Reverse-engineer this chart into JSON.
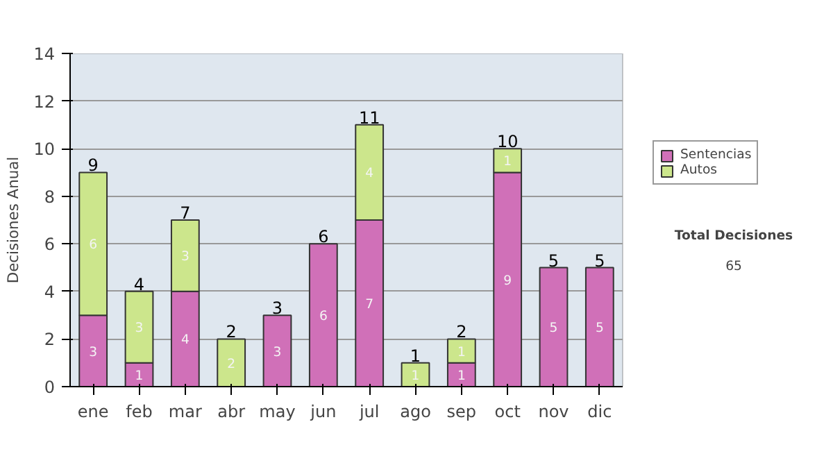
{
  "chart_data": {
    "type": "bar",
    "stacked": true,
    "ylabel": "Decisiones Anual",
    "categories": [
      "ene",
      "feb",
      "mar",
      "abr",
      "may",
      "jun",
      "jul",
      "ago",
      "sep",
      "oct",
      "nov",
      "dic"
    ],
    "series": [
      {
        "name": "Sentencias",
        "color": "#d070b8",
        "values": [
          3,
          1,
          4,
          0,
          3,
          6,
          7,
          0,
          1,
          9,
          5,
          5
        ],
        "value_labels": [
          "3",
          "1",
          "4",
          null,
          "3",
          "6",
          "7",
          null,
          "1",
          "9",
          "5",
          "5"
        ]
      },
      {
        "name": "Autos",
        "color": "#cce68c",
        "values": [
          6,
          3,
          3,
          2,
          0,
          0,
          4,
          1,
          1,
          1,
          0,
          0
        ],
        "value_labels": [
          "6",
          "3",
          "3",
          "2",
          null,
          null,
          "4",
          "1",
          "1",
          "1",
          null,
          null
        ]
      }
    ],
    "totals": [
      "9",
      "4",
      "7",
      "2",
      "3",
      "6",
      "11",
      "1",
      "2",
      "10",
      "5",
      "5"
    ],
    "ylim": [
      0,
      14
    ],
    "yticks": [
      0,
      2,
      4,
      6,
      8,
      10,
      12,
      14
    ],
    "grid": "y",
    "legend": "right",
    "annotations": [
      "Total Decisiones",
      "65"
    ]
  }
}
